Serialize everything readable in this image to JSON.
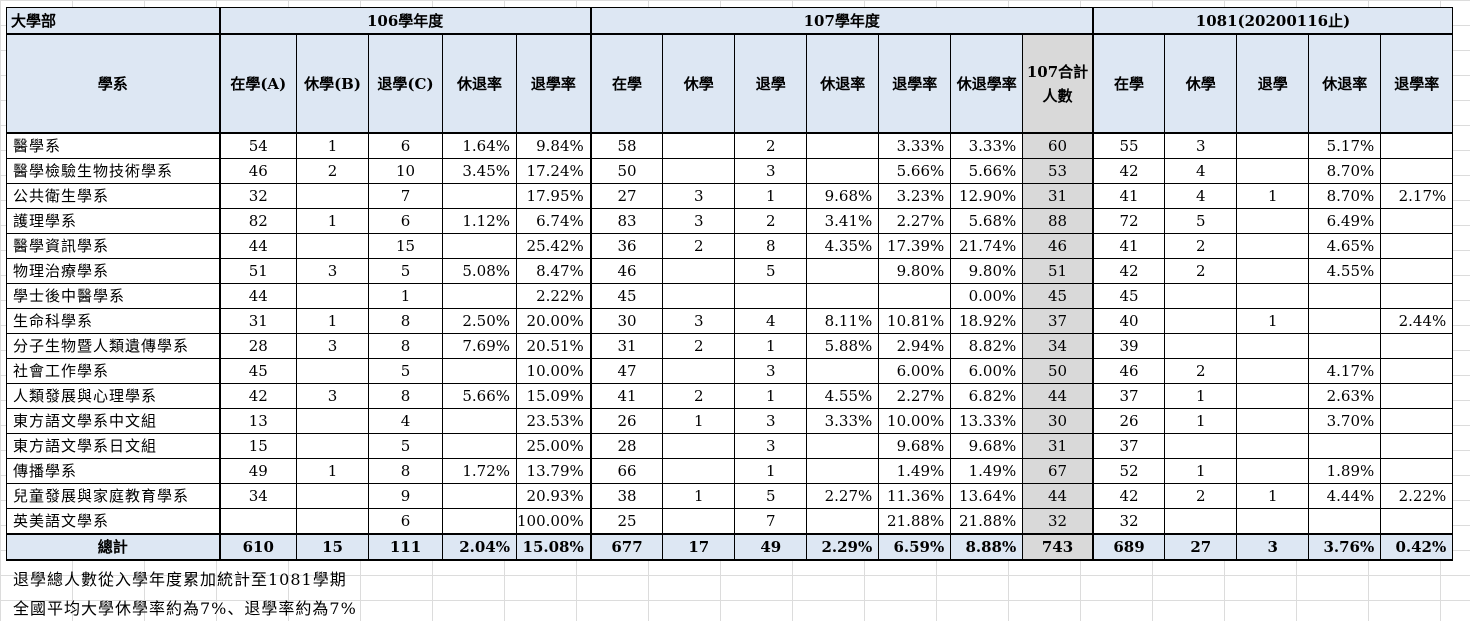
{
  "header": {
    "corner": "大學部",
    "years": [
      "106學年度",
      "107學年度",
      "1081(20200116止)"
    ],
    "dept_label": "學系",
    "y106_cols": [
      "在學(A)",
      "休學(B)",
      "退學(C)",
      "休退率",
      "退學率"
    ],
    "y107_cols": [
      "在學",
      "休學",
      "退學",
      "休退率",
      "退學率",
      "休退學率"
    ],
    "y107_total_col": [
      "107合計",
      "人數"
    ],
    "y1081_cols": [
      "在學",
      "休學",
      "退學",
      "休退率",
      "退學率"
    ]
  },
  "rows": [
    {
      "dept": "醫學系",
      "a": [
        "54",
        "1",
        "6",
        "1.64%",
        "9.84%"
      ],
      "b": [
        "58",
        "",
        "2",
        "",
        "3.33%",
        "3.33%"
      ],
      "t": "60",
      "c": [
        "55",
        "3",
        "",
        "5.17%",
        ""
      ]
    },
    {
      "dept": "醫學檢驗生物技術學系",
      "a": [
        "46",
        "2",
        "10",
        "3.45%",
        "17.24%"
      ],
      "b": [
        "50",
        "",
        "3",
        "",
        "5.66%",
        "5.66%"
      ],
      "t": "53",
      "c": [
        "42",
        "4",
        "",
        "8.70%",
        ""
      ]
    },
    {
      "dept": "公共衛生學系",
      "a": [
        "32",
        "",
        "7",
        "",
        "17.95%"
      ],
      "b": [
        "27",
        "3",
        "1",
        "9.68%",
        "3.23%",
        "12.90%"
      ],
      "t": "31",
      "c": [
        "41",
        "4",
        "1",
        "8.70%",
        "2.17%"
      ]
    },
    {
      "dept": "護理學系",
      "a": [
        "82",
        "1",
        "6",
        "1.12%",
        "6.74%"
      ],
      "b": [
        "83",
        "3",
        "2",
        "3.41%",
        "2.27%",
        "5.68%"
      ],
      "t": "88",
      "c": [
        "72",
        "5",
        "",
        "6.49%",
        ""
      ]
    },
    {
      "dept": "醫學資訊學系",
      "a": [
        "44",
        "",
        "15",
        "",
        "25.42%"
      ],
      "b": [
        "36",
        "2",
        "8",
        "4.35%",
        "17.39%",
        "21.74%"
      ],
      "t": "46",
      "c": [
        "41",
        "2",
        "",
        "4.65%",
        ""
      ]
    },
    {
      "dept": "物理治療學系",
      "a": [
        "51",
        "3",
        "5",
        "5.08%",
        "8.47%"
      ],
      "b": [
        "46",
        "",
        "5",
        "",
        "9.80%",
        "9.80%"
      ],
      "t": "51",
      "c": [
        "42",
        "2",
        "",
        "4.55%",
        ""
      ]
    },
    {
      "dept": "學士後中醫學系",
      "a": [
        "44",
        "",
        "1",
        "",
        "2.22%"
      ],
      "b": [
        "45",
        "",
        "",
        "",
        "",
        "0.00%"
      ],
      "t": "45",
      "c": [
        "45",
        "",
        "",
        "",
        ""
      ]
    },
    {
      "dept": "生命科學系",
      "a": [
        "31",
        "1",
        "8",
        "2.50%",
        "20.00%"
      ],
      "b": [
        "30",
        "3",
        "4",
        "8.11%",
        "10.81%",
        "18.92%"
      ],
      "t": "37",
      "c": [
        "40",
        "",
        "1",
        "",
        "2.44%"
      ]
    },
    {
      "dept": "分子生物暨人類遺傳學系",
      "a": [
        "28",
        "3",
        "8",
        "7.69%",
        "20.51%"
      ],
      "b": [
        "31",
        "2",
        "1",
        "5.88%",
        "2.94%",
        "8.82%"
      ],
      "t": "34",
      "c": [
        "39",
        "",
        "",
        "",
        ""
      ]
    },
    {
      "dept": "社會工作學系",
      "a": [
        "45",
        "",
        "5",
        "",
        "10.00%"
      ],
      "b": [
        "47",
        "",
        "3",
        "",
        "6.00%",
        "6.00%"
      ],
      "t": "50",
      "c": [
        "46",
        "2",
        "",
        "4.17%",
        ""
      ]
    },
    {
      "dept": "人類發展與心理學系",
      "a": [
        "42",
        "3",
        "8",
        "5.66%",
        "15.09%"
      ],
      "b": [
        "41",
        "2",
        "1",
        "4.55%",
        "2.27%",
        "6.82%"
      ],
      "t": "44",
      "c": [
        "37",
        "1",
        "",
        "2.63%",
        ""
      ]
    },
    {
      "dept": "東方語文學系中文組",
      "a": [
        "13",
        "",
        "4",
        "",
        "23.53%"
      ],
      "b": [
        "26",
        "1",
        "3",
        "3.33%",
        "10.00%",
        "13.33%"
      ],
      "t": "30",
      "c": [
        "26",
        "1",
        "",
        "3.70%",
        ""
      ]
    },
    {
      "dept": "東方語文學系日文組",
      "a": [
        "15",
        "",
        "5",
        "",
        "25.00%"
      ],
      "b": [
        "28",
        "",
        "3",
        "",
        "9.68%",
        "9.68%"
      ],
      "t": "31",
      "c": [
        "37",
        "",
        "",
        "",
        ""
      ]
    },
    {
      "dept": "傳播學系",
      "a": [
        "49",
        "1",
        "8",
        "1.72%",
        "13.79%"
      ],
      "b": [
        "66",
        "",
        "1",
        "",
        "1.49%",
        "1.49%"
      ],
      "t": "67",
      "c": [
        "52",
        "1",
        "",
        "1.89%",
        ""
      ]
    },
    {
      "dept": "兒童發展與家庭教育學系",
      "a": [
        "34",
        "",
        "9",
        "",
        "20.93%"
      ],
      "b": [
        "38",
        "1",
        "5",
        "2.27%",
        "11.36%",
        "13.64%"
      ],
      "t": "44",
      "c": [
        "42",
        "2",
        "1",
        "4.44%",
        "2.22%"
      ]
    },
    {
      "dept": "英美語文學系",
      "a": [
        "",
        "",
        "6",
        "",
        "100.00%"
      ],
      "b": [
        "25",
        "",
        "7",
        "",
        "21.88%",
        "21.88%"
      ],
      "t": "32",
      "c": [
        "32",
        "",
        "",
        "",
        ""
      ]
    }
  ],
  "total": {
    "label": "總計",
    "a": [
      "610",
      "15",
      "111",
      "2.04%",
      "15.08%"
    ],
    "b": [
      "677",
      "17",
      "49",
      "2.29%",
      "6.59%",
      "8.88%"
    ],
    "t": "743",
    "c": [
      "689",
      "27",
      "3",
      "3.76%",
      "0.42%"
    ]
  },
  "notes": [
    "退學總人數從入學年度累加統計至1081學期",
    "全國平均大學休學率約為7%、退學率約為7%"
  ]
}
